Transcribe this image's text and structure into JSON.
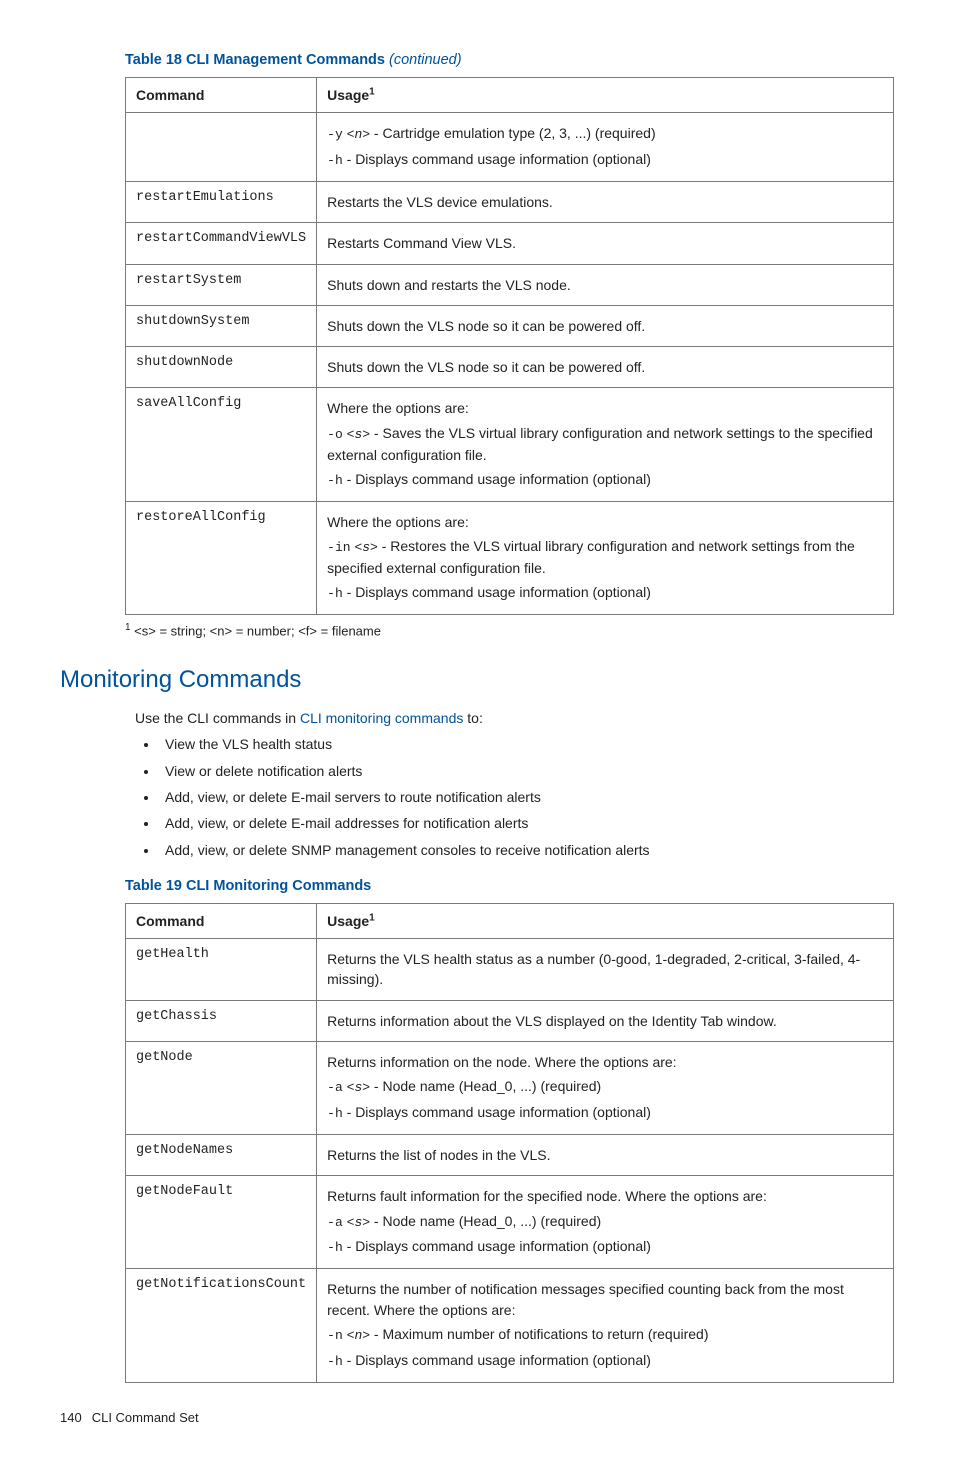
{
  "table18": {
    "caption_label": "Table 18 CLI Management Commands",
    "caption_suffix": "(continued)",
    "columns": {
      "command": "Command",
      "usage": "Usage",
      "usage_fn": "1"
    },
    "rows": [
      {
        "command": "",
        "usage_parts": [
          {
            "opt": "-y",
            "arg": "<n>",
            "text": " - Cartridge emulation type (2, 3, ...) (required)"
          },
          {
            "opt": "-h",
            "text": " - Displays command usage information (optional)"
          }
        ]
      },
      {
        "command": "restartEmulations",
        "usage_plain": "Restarts the VLS device emulations."
      },
      {
        "command": "restartCommandViewVLS",
        "usage_plain": "Restarts Command View VLS."
      },
      {
        "command": "restartSystem",
        "usage_plain": "Shuts down and restarts the VLS node."
      },
      {
        "command": "shutdownSystem",
        "usage_plain": "Shuts down the VLS node so it can be powered off."
      },
      {
        "command": "shutdownNode",
        "usage_plain": "Shuts down the VLS node so it can be powered off."
      },
      {
        "command": "saveAllConfig",
        "usage_lead": "Where the options are:",
        "usage_parts": [
          {
            "opt": "-o",
            "arg": "<s>",
            "text": " - Saves the VLS virtual library configuration and network settings to the specified external configuration file."
          },
          {
            "opt": "-h",
            "text": " - Displays command usage information (optional)"
          }
        ]
      },
      {
        "command": "restoreAllConfig",
        "usage_lead": "Where the options are:",
        "usage_parts": [
          {
            "opt": "-in",
            "arg": "<s>",
            "text": " - Restores the VLS virtual library configuration and network settings from the specified external configuration file."
          },
          {
            "opt": "-h",
            "text": " - Displays command usage information (optional)"
          }
        ]
      }
    ],
    "footnote_num": "1",
    "footnote_text": "  <s> = string; <n> = number; <f> = filename"
  },
  "section_heading": "Monitoring Commands",
  "intro_prefix": "Use the CLI commands in ",
  "intro_link": "CLI monitoring commands",
  "intro_suffix": " to:",
  "bullets": [
    "View the VLS health status",
    "View or delete notification alerts",
    "Add, view, or delete E-mail servers to route notification alerts",
    "Add, view, or delete E-mail addresses for notification alerts",
    "Add, view, or delete SNMP management consoles to receive notification alerts"
  ],
  "table19": {
    "caption_label": "Table 19 CLI Monitoring Commands",
    "columns": {
      "command": "Command",
      "usage": "Usage",
      "usage_fn": "1"
    },
    "rows": [
      {
        "command": "getHealth",
        "usage_plain": "Returns the VLS health status as a number (0-good, 1-degraded, 2-critical, 3-failed, 4-missing)."
      },
      {
        "command": "getChassis",
        "usage_plain": "Returns information about the VLS displayed on the Identity Tab window."
      },
      {
        "command": "getNode",
        "usage_lead": "Returns information on the node. Where the options are:",
        "usage_parts": [
          {
            "opt": "-a",
            "arg": "<s>",
            "text": " - Node name (Head_0, ...) (required)"
          },
          {
            "opt": "-h",
            "text": " - Displays command usage information (optional)"
          }
        ]
      },
      {
        "command": "getNodeNames",
        "usage_plain": "Returns the list of nodes in the VLS."
      },
      {
        "command": "getNodeFault",
        "usage_lead": "Returns fault information for the specified node. Where the options are:",
        "usage_parts": [
          {
            "opt": "-a",
            "arg": "<s>",
            "text": " - Node name (Head_0, ...) (required)"
          },
          {
            "opt": "-h",
            "text": " - Displays command usage information (optional)"
          }
        ]
      },
      {
        "command": "getNotificationsCount",
        "usage_lead": "Returns the number of notification messages specified counting back from the most recent. Where the options are:",
        "usage_parts": [
          {
            "opt": "-n",
            "arg": "<n>",
            "text": " - Maximum number of notifications to return (required)"
          },
          {
            "opt": "-h",
            "text": " - Displays command usage information (optional)"
          }
        ]
      }
    ]
  },
  "page_number": "140",
  "page_section": "CLI Command Set"
}
